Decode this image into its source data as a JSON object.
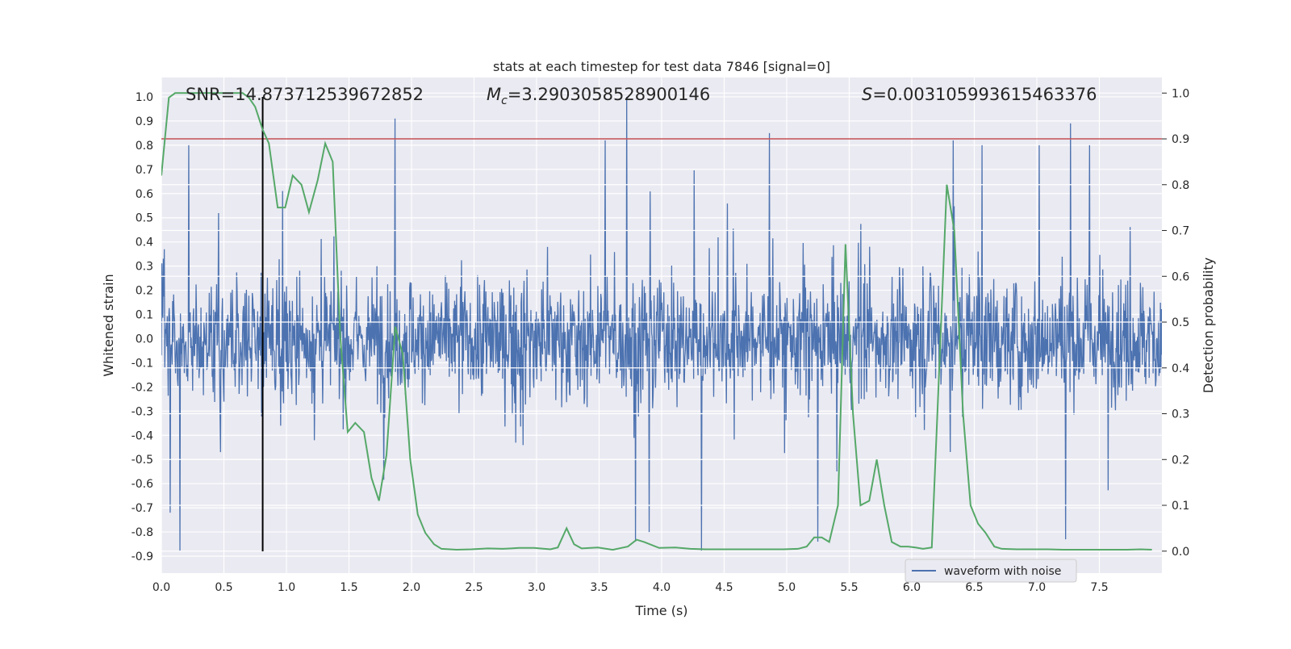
{
  "chart_data": {
    "type": "line",
    "title": "stats at each timestep for test data 7846 [signal=0]",
    "xlabel": "Time (s)",
    "ylabel": "Whitened strain",
    "y2label": "Detection probability",
    "xlim": [
      0.0,
      8.0
    ],
    "ylim": [
      -0.97,
      1.08
    ],
    "y2lim": [
      -0.048,
      1.034
    ],
    "xticks": [
      "0.0",
      "0.5",
      "1.0",
      "1.5",
      "2.0",
      "2.5",
      "3.0",
      "3.5",
      "4.0",
      "4.5",
      "5.0",
      "5.5",
      "6.0",
      "6.5",
      "7.0",
      "7.5"
    ],
    "yticks": [
      "-0.9",
      "-0.8",
      "-0.7",
      "-0.6",
      "-0.5",
      "-0.4",
      "-0.3",
      "-0.2",
      "-0.1",
      "0.0",
      "0.1",
      "0.2",
      "0.3",
      "0.4",
      "0.5",
      "0.6",
      "0.7",
      "0.8",
      "0.9",
      "1.0"
    ],
    "y2ticks": [
      "0.0",
      "0.1",
      "0.2",
      "0.3",
      "0.4",
      "0.5",
      "0.6",
      "0.7",
      "0.8",
      "0.9",
      "1.0"
    ],
    "grid": true,
    "annotations": {
      "snr": "SNR=14.873712539672852",
      "mc_symbol": "M",
      "mc_sub": "c",
      "mc_value": "=3.2903058528900146",
      "s_symbol": "S",
      "s_value": "=0.003105993615463376"
    },
    "threshold": {
      "axis": "y2",
      "value": 0.9,
      "color": "#c44e52"
    },
    "marker_line": {
      "x": 0.81,
      "color": "#000000"
    },
    "legend": {
      "entries": [
        "waveform with noise"
      ],
      "placement": "lower-right"
    },
    "series": [
      {
        "name": "waveform with noise",
        "axis": "y",
        "kind": "noise",
        "color": "#4c72b0",
        "duration": 8.0,
        "samples": 2048,
        "min": -0.88,
        "max": 1.0,
        "peaks": [
          {
            "x": 1.87,
            "y": 0.91
          },
          {
            "x": 3.72,
            "y": 1.0
          },
          {
            "x": 4.86,
            "y": 0.85
          },
          {
            "x": 3.55,
            "y": 0.82
          },
          {
            "x": 6.33,
            "y": 0.82
          },
          {
            "x": 7.27,
            "y": 0.89
          },
          {
            "x": 0.22,
            "y": 0.8
          },
          {
            "x": 6.56,
            "y": 0.8
          },
          {
            "x": 7.02,
            "y": 0.8
          },
          {
            "x": 7.42,
            "y": 0.8
          },
          {
            "x": 0.15,
            "y": -0.88
          },
          {
            "x": 4.32,
            "y": -0.88
          },
          {
            "x": 5.25,
            "y": -0.84
          },
          {
            "x": 3.79,
            "y": -0.84
          },
          {
            "x": 0.07,
            "y": -0.72
          },
          {
            "x": 7.23,
            "y": -0.83
          },
          {
            "x": 3.9,
            "y": -0.8
          }
        ]
      },
      {
        "name": "detection probability",
        "axis": "y2",
        "kind": "line",
        "color": "#55a868",
        "x": [
          0.0,
          0.06,
          0.11,
          0.17,
          0.23,
          0.3,
          0.4,
          0.5,
          0.6,
          0.65,
          0.7,
          0.75,
          0.81,
          0.86,
          0.93,
          0.99,
          1.05,
          1.12,
          1.18,
          1.25,
          1.31,
          1.37,
          1.43,
          1.49,
          1.55,
          1.62,
          1.68,
          1.74,
          1.8,
          1.87,
          1.93,
          1.99,
          2.05,
          2.11,
          2.18,
          2.24,
          2.36,
          2.48,
          2.61,
          2.73,
          2.86,
          2.98,
          3.11,
          3.17,
          3.24,
          3.3,
          3.36,
          3.49,
          3.61,
          3.73,
          3.8,
          3.86,
          3.98,
          4.11,
          4.23,
          4.35,
          4.48,
          4.6,
          4.72,
          4.85,
          4.97,
          5.09,
          5.16,
          5.22,
          5.28,
          5.34,
          5.41,
          5.47,
          5.53,
          5.59,
          5.66,
          5.72,
          5.78,
          5.84,
          5.91,
          5.97,
          6.03,
          6.09,
          6.16,
          6.22,
          6.28,
          6.34,
          6.41,
          6.47,
          6.53,
          6.59,
          6.66,
          6.72,
          6.84,
          6.97,
          7.09,
          7.21,
          7.34,
          7.46,
          7.59,
          7.71,
          7.83,
          7.92
        ],
        "y": [
          0.82,
          0.99,
          1.0,
          1.0,
          1.0,
          1.0,
          1.0,
          1.0,
          1.0,
          1.0,
          0.99,
          0.97,
          0.92,
          0.89,
          0.75,
          0.75,
          0.82,
          0.8,
          0.74,
          0.81,
          0.89,
          0.85,
          0.47,
          0.26,
          0.28,
          0.26,
          0.16,
          0.11,
          0.21,
          0.49,
          0.43,
          0.2,
          0.08,
          0.04,
          0.015,
          0.005,
          0.003,
          0.004,
          0.006,
          0.005,
          0.007,
          0.007,
          0.004,
          0.008,
          0.05,
          0.015,
          0.006,
          0.008,
          0.003,
          0.01,
          0.025,
          0.02,
          0.007,
          0.008,
          0.005,
          0.004,
          0.004,
          0.004,
          0.004,
          0.004,
          0.004,
          0.005,
          0.01,
          0.03,
          0.03,
          0.02,
          0.1,
          0.67,
          0.3,
          0.1,
          0.11,
          0.2,
          0.1,
          0.02,
          0.01,
          0.01,
          0.008,
          0.005,
          0.008,
          0.4,
          0.8,
          0.7,
          0.3,
          0.1,
          0.06,
          0.04,
          0.01,
          0.005,
          0.004,
          0.004,
          0.004,
          0.003,
          0.003,
          0.003,
          0.003,
          0.003,
          0.004,
          0.003
        ]
      }
    ]
  }
}
